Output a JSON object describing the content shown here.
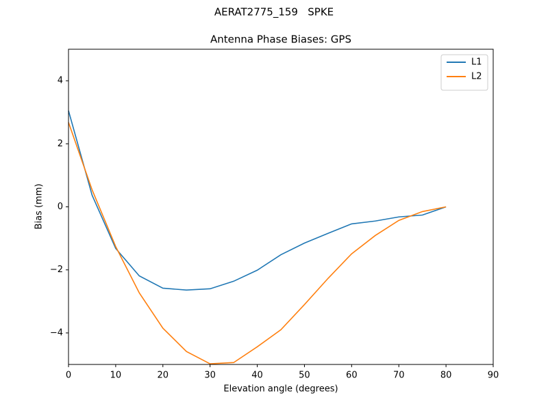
{
  "chart_data": {
    "type": "line",
    "suptitle": "AERAT2775_159   SPKE",
    "title": "Antenna Phase Biases: GPS",
    "xlabel": "Elevation angle (degrees)",
    "ylabel": "Bias (mm)",
    "x": [
      0,
      5,
      10,
      15,
      20,
      25,
      30,
      35,
      40,
      45,
      50,
      55,
      60,
      65,
      70,
      75,
      80
    ],
    "series": [
      {
        "name": "L1",
        "color": "#1f77b4",
        "values": [
          3.05,
          0.37,
          -1.32,
          -2.19,
          -2.58,
          -2.64,
          -2.6,
          -2.36,
          -2.01,
          -1.52,
          -1.15,
          -0.84,
          -0.54,
          -0.45,
          -0.32,
          -0.26,
          0
        ]
      },
      {
        "name": "L2",
        "color": "#ff7f0e",
        "values": [
          2.68,
          0.54,
          -1.26,
          -2.73,
          -3.85,
          -4.59,
          -4.98,
          -4.94,
          -4.44,
          -3.9,
          -3.1,
          -2.27,
          -1.49,
          -0.91,
          -0.43,
          -0.15,
          0
        ]
      }
    ],
    "xlim": [
      0,
      90
    ],
    "xticks": [
      0,
      10,
      20,
      30,
      40,
      50,
      60,
      70,
      80,
      90
    ],
    "ylim": [
      -5,
      5
    ],
    "yticks": [
      {
        "value": -4,
        "label": "−4"
      },
      {
        "value": -2,
        "label": "−2"
      },
      0,
      2,
      4
    ],
    "grid": false,
    "legend": "upper right"
  }
}
